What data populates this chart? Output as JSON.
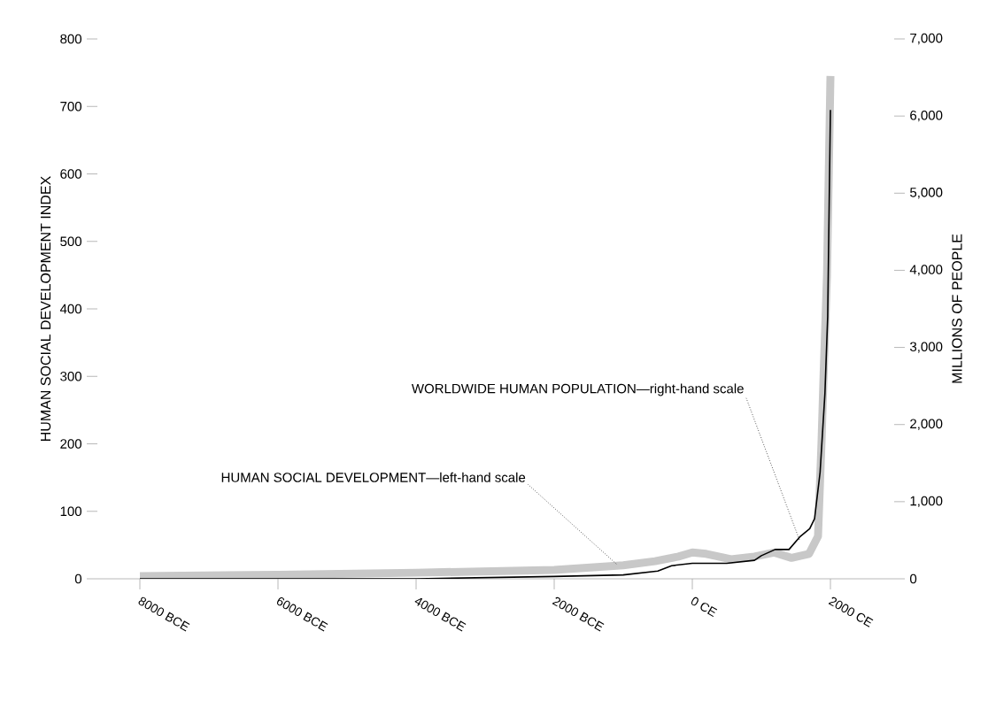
{
  "chart_data": {
    "type": "line",
    "xlabel": null,
    "ylabel": "HUMAN SOCIAL DEVELOPMENT INDEX",
    "y2label": "MILLIONS OF PEOPLE",
    "xlim": [
      -8615,
      2923
    ],
    "xticks": [
      {
        "value": -8000,
        "label": "8000 BCE"
      },
      {
        "value": -6000,
        "label": "6000 BCE"
      },
      {
        "value": -4000,
        "label": "4000 BCE"
      },
      {
        "value": -2000,
        "label": "2000 BCE"
      },
      {
        "value": 0,
        "label": "0 CE"
      },
      {
        "value": 2000,
        "label": "2000 CE"
      }
    ],
    "ylim": [
      0,
      800
    ],
    "yticks": [
      0,
      100,
      200,
      300,
      400,
      500,
      600,
      700,
      800
    ],
    "y2lim": [
      0,
      7000
    ],
    "y2ticks": [
      0,
      {
        "value": 1000,
        "label": "1,000"
      },
      {
        "value": 2000,
        "label": "2,000"
      },
      {
        "value": 3000,
        "label": "3,000"
      },
      {
        "value": 4000,
        "label": "4,000"
      },
      {
        "value": 5000,
        "label": "5,000"
      },
      {
        "value": 6000,
        "label": "6,000"
      },
      {
        "value": 7000,
        "label": "7,000"
      }
    ],
    "grid": false,
    "marker": "none",
    "series": [
      {
        "color": "#c8c8c8",
        "x": [
          -8000,
          -6000,
          -4000,
          -2000,
          -1000,
          -540,
          -200,
          0,
          200,
          560,
          900,
          1180,
          1436,
          1690,
          1820,
          1870,
          1900,
          1950,
          2000
        ],
        "values": [
          4,
          6,
          9,
          13,
          20,
          26,
          33,
          39,
          37,
          29,
          33,
          39,
          31,
          37,
          63,
          200,
          300,
          450,
          745
        ]
      },
      {
        "color": "#000000",
        "axis": "y2",
        "x": [
          -8000,
          -4000,
          -2000,
          -1000,
          -500,
          -300,
          0,
          500,
          900,
          1000,
          1200,
          1400,
          1564,
          1700,
          1770,
          1850,
          1920,
          1960,
          2000
        ],
        "values": [
          0,
          0,
          30,
          50,
          100,
          170,
          200,
          200,
          240,
          300,
          380,
          380,
          550,
          650,
          780,
          1380,
          2400,
          3400,
          6080
        ]
      }
    ],
    "annotations": [
      {
        "text": "HUMAN SOCIAL DEVELOPMENT—left-hand scale",
        "x": -1100,
        "y": 22
      },
      {
        "text": "WORLDWIDE HUMAN POPULATION—right-hand scale",
        "x": 1550,
        "y": 58
      }
    ]
  }
}
